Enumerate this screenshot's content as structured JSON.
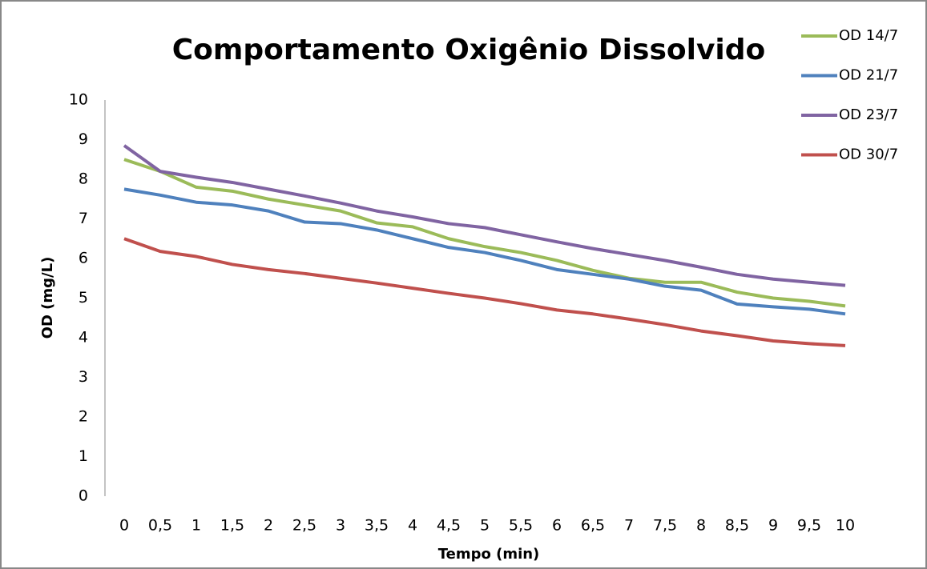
{
  "chart_data": {
    "type": "line",
    "title": "Comportamento Oxigênio Dissolvido",
    "x_label": "Tempo (min)",
    "y_label": "OD (mg/L)",
    "categories": [
      "0",
      "0,5",
      "1",
      "1,5",
      "2",
      "2,5",
      "3",
      "3,5",
      "4",
      "4,5",
      "5",
      "5,5",
      "6",
      "6,5",
      "7",
      "7,5",
      "8",
      "8,5",
      "9",
      "9,5",
      "10"
    ],
    "series": [
      {
        "name": "OD 14/7",
        "color": "#9bbb59",
        "values": [
          8.5,
          8.2,
          7.8,
          7.7,
          7.5,
          7.35,
          7.2,
          6.9,
          6.8,
          6.5,
          6.3,
          6.15,
          5.95,
          5.7,
          5.5,
          5.4,
          5.4,
          5.15,
          5.0,
          4.92,
          4.8
        ]
      },
      {
        "name": "OD 21/7",
        "color": "#4f81bd",
        "values": [
          7.75,
          7.6,
          7.42,
          7.35,
          7.2,
          6.92,
          6.88,
          6.72,
          6.5,
          6.28,
          6.15,
          5.95,
          5.72,
          5.6,
          5.48,
          5.3,
          5.2,
          4.85,
          4.78,
          4.72,
          4.6
        ]
      },
      {
        "name": "OD 23/7",
        "color": "#8064a2",
        "values": [
          8.85,
          8.2,
          8.05,
          7.92,
          7.75,
          7.58,
          7.4,
          7.2,
          7.05,
          6.88,
          6.78,
          6.6,
          6.42,
          6.25,
          6.1,
          5.95,
          5.78,
          5.6,
          5.48,
          5.4,
          5.32
        ]
      },
      {
        "name": "OD 30/7",
        "color": "#c0504d",
        "values": [
          6.5,
          6.18,
          6.05,
          5.85,
          5.72,
          5.62,
          5.5,
          5.38,
          5.25,
          5.12,
          5.0,
          4.86,
          4.7,
          4.6,
          4.47,
          4.33,
          4.17,
          4.05,
          3.92,
          3.85,
          3.8
        ]
      }
    ],
    "ylim": [
      0,
      10
    ],
    "yticks": [
      0,
      1,
      2,
      3,
      4,
      5,
      6,
      7,
      8,
      9,
      10
    ],
    "grid": false,
    "legend": "right"
  }
}
